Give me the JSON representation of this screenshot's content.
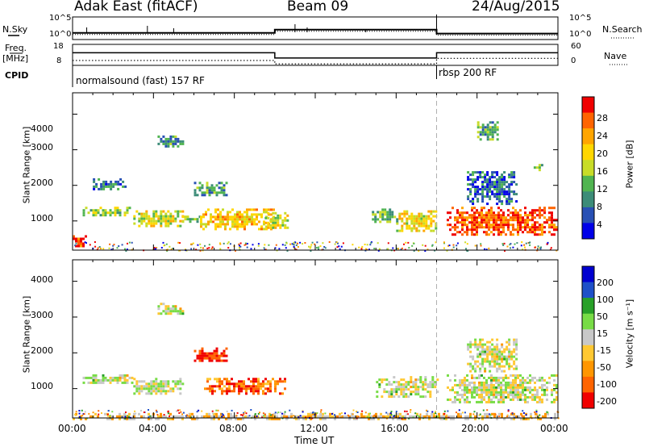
{
  "header": {
    "title": "Adak East (fitACF)",
    "beam": "Beam 09",
    "date": "24/Aug/2015"
  },
  "status_panel": {
    "nsky_label": "N.Sky",
    "nsearch_label": "N.Search",
    "freq_label": "Freq.",
    "freq_unit": "[MHz]",
    "nave_label": "Nave",
    "cpid_label": "CPID",
    "noise_ticks": [
      "10^5",
      "10^0"
    ],
    "freq_ticks": [
      "18",
      "8"
    ],
    "nave_ticks": [
      "60",
      "0"
    ],
    "cpid_entries": [
      {
        "text": "normalsound (fast) 157 RF",
        "start": "00:00"
      },
      {
        "text": "rbsp 200 RF",
        "start": "18:00"
      }
    ],
    "freq_mhz": [
      {
        "from": 0,
        "to": 10,
        "value": 13.2
      },
      {
        "from": 10,
        "to": 18,
        "value": 10.2
      },
      {
        "from": 18,
        "to": 24,
        "value": 13.2
      }
    ],
    "nave": [
      {
        "from": 0,
        "to": 10,
        "value": 14
      },
      {
        "from": 10,
        "to": 18,
        "value": 4
      },
      {
        "from": 18,
        "to": 24,
        "value": 20
      }
    ],
    "noise_sky_log10": [
      {
        "from": 0,
        "to": 10,
        "value": 1.2
      },
      {
        "from": 10,
        "to": 18,
        "value": 2.1
      },
      {
        "from": 18,
        "to": 24,
        "value": 1.0
      }
    ]
  },
  "chart_data": [
    {
      "type": "heatmap",
      "name": "power",
      "ylabel": "Slant Range [km]",
      "ylim": [
        180,
        4600
      ],
      "xlim": [
        0,
        24
      ],
      "yticks": [
        "1000",
        "2000",
        "3000",
        "4000"
      ],
      "xticks": [
        "00:00",
        "04:00",
        "08:00",
        "12:00",
        "16:00",
        "20:00",
        "00:00"
      ],
      "colorbar": {
        "label": "Power [dB]",
        "ticks": [
          "4",
          "8",
          "12",
          "16",
          "20",
          "24",
          "28"
        ],
        "colors": [
          "#0000e8",
          "#2850b4",
          "#3c8c78",
          "#50b450",
          "#c8dc28",
          "#ffd700",
          "#ffa500",
          "#ff6400",
          "#f00000"
        ]
      },
      "regions": [
        {
          "t": [
            0.0,
            0.6
          ],
          "r": [
            300,
            600
          ],
          "level": 0.9
        },
        {
          "t": [
            0.5,
            3.0
          ],
          "r": [
            1150,
            1400
          ],
          "level": 0.45
        },
        {
          "t": [
            1.0,
            2.6
          ],
          "r": [
            1900,
            2200
          ],
          "level": 0.25
        },
        {
          "t": [
            3.0,
            5.4
          ],
          "r": [
            850,
            1300
          ],
          "level": 0.55
        },
        {
          "t": [
            4.2,
            5.4
          ],
          "r": [
            3100,
            3400
          ],
          "level": 0.3
        },
        {
          "t": [
            5.4,
            6.3
          ],
          "r": [
            1000,
            1150
          ],
          "level": 0.4
        },
        {
          "t": [
            6.0,
            7.6
          ],
          "r": [
            1700,
            2100
          ],
          "level": 0.3
        },
        {
          "t": [
            6.3,
            10.0
          ],
          "r": [
            800,
            1350
          ],
          "level": 0.65
        },
        {
          "t": [
            9.5,
            10.6
          ],
          "r": [
            800,
            1250
          ],
          "level": 0.55
        },
        {
          "t": [
            14.8,
            16.0
          ],
          "r": [
            1000,
            1350
          ],
          "level": 0.4
        },
        {
          "t": [
            16.0,
            18.0
          ],
          "r": [
            750,
            1300
          ],
          "level": 0.6
        },
        {
          "t": [
            18.5,
            24.0
          ],
          "r": [
            600,
            1400
          ],
          "level": 0.85
        },
        {
          "t": [
            19.5,
            22.0
          ],
          "r": [
            1500,
            2400
          ],
          "level": 0.2
        },
        {
          "t": [
            22.8,
            23.2
          ],
          "r": [
            2400,
            2600
          ],
          "level": 0.4
        },
        {
          "t": [
            20.0,
            21.0
          ],
          "r": [
            3300,
            3800
          ],
          "level": 0.35
        }
      ]
    },
    {
      "type": "heatmap",
      "name": "velocity",
      "ylabel": "Slant Range [km]",
      "ylim": [
        180,
        4600
      ],
      "xlim": [
        0,
        24
      ],
      "yticks": [
        "1000",
        "2000",
        "3000",
        "4000"
      ],
      "xticks": [
        "00:00",
        "04:00",
        "08:00",
        "12:00",
        "16:00",
        "20:00",
        "00:00"
      ],
      "xlabel": "Time UT",
      "colorbar": {
        "label": "Velocity [m s⁻¹]",
        "ticks": [
          "200",
          "100",
          "50",
          "15",
          "-15",
          "-50",
          "-100",
          "-200"
        ],
        "colors": [
          "#0000d0",
          "#1e50c8",
          "#28a028",
          "#78dc46",
          "#c8c8c8",
          "#ffc832",
          "#ff9600",
          "#ff6400",
          "#f00000"
        ]
      },
      "regions": [
        {
          "t": [
            0.0,
            24.0
          ],
          "r": [
            180,
            320
          ],
          "level": 0.3,
          "kind": "ground"
        },
        {
          "t": [
            0.5,
            3.0
          ],
          "r": [
            1150,
            1400
          ],
          "level": 0.5
        },
        {
          "t": [
            3.0,
            5.4
          ],
          "r": [
            850,
            1300
          ],
          "level": 0.5
        },
        {
          "t": [
            4.2,
            5.4
          ],
          "r": [
            3100,
            3400
          ],
          "level": 0.5
        },
        {
          "t": [
            6.0,
            7.6
          ],
          "r": [
            1750,
            2150
          ],
          "level": 0.95
        },
        {
          "t": [
            6.5,
            10.5
          ],
          "r": [
            850,
            1300
          ],
          "level": 0.8
        },
        {
          "t": [
            15.0,
            18.0
          ],
          "r": [
            800,
            1350
          ],
          "level": 0.5
        },
        {
          "t": [
            18.5,
            24.0
          ],
          "r": [
            650,
            1400
          ],
          "level": 0.5
        },
        {
          "t": [
            19.5,
            22.0
          ],
          "r": [
            1500,
            2400
          ],
          "level": 0.5
        }
      ]
    }
  ]
}
